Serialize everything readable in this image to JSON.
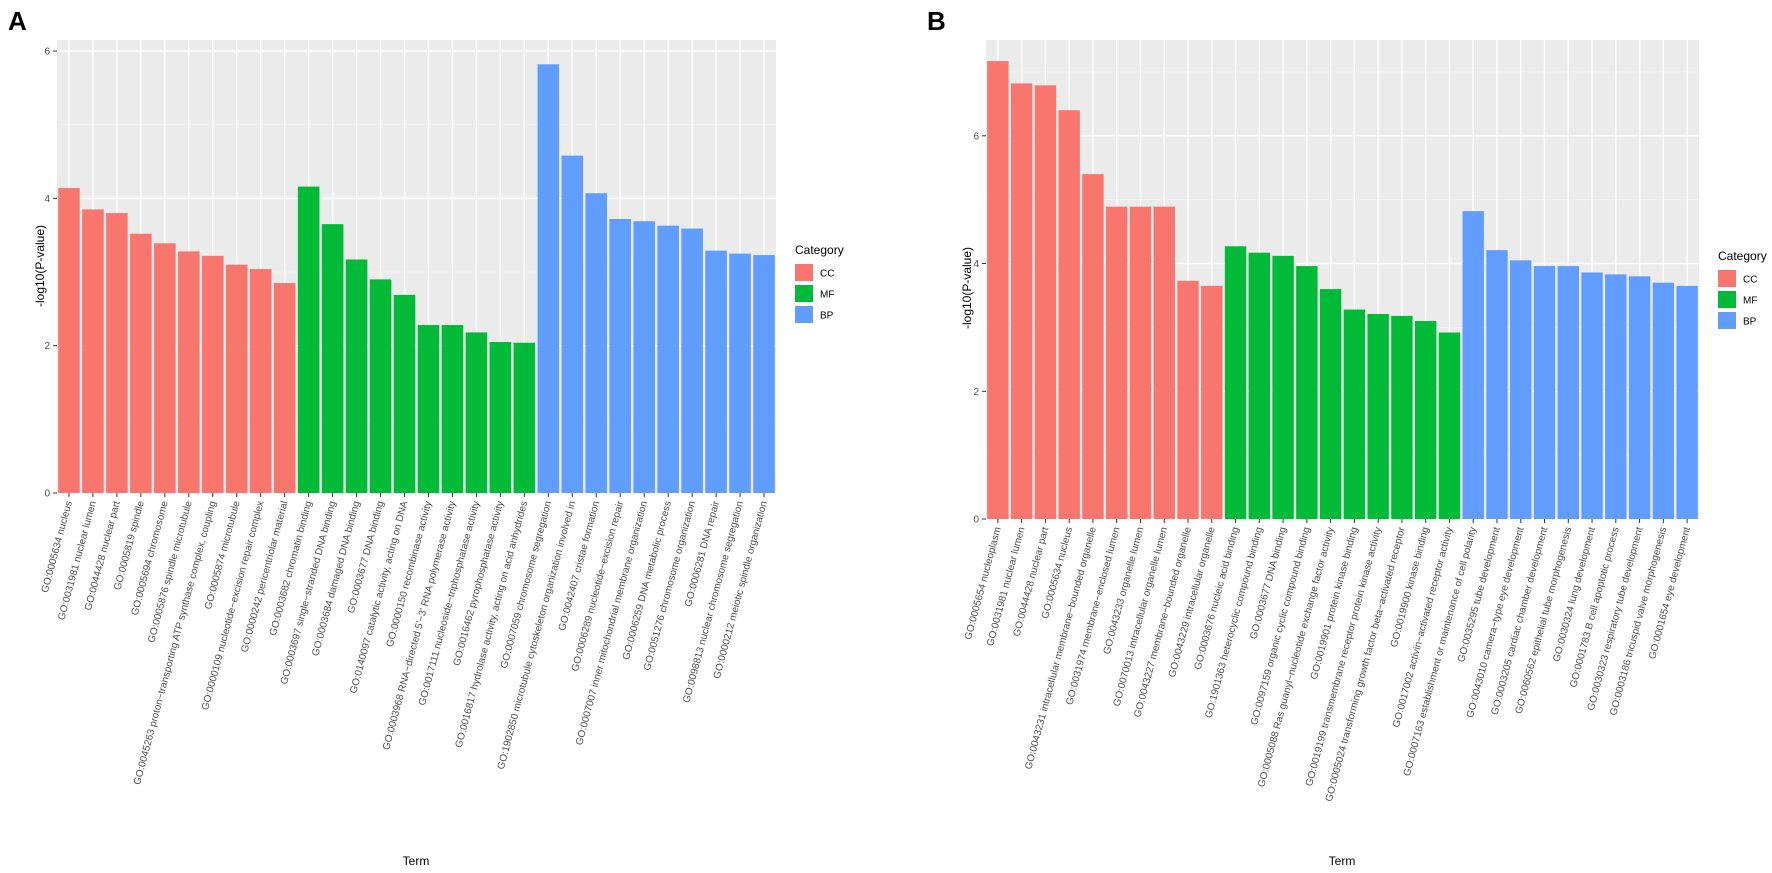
{
  "chart_data": [
    {
      "type": "bar",
      "panel_label": "A",
      "xlabel": "Term",
      "ylabel": "-log10(P-value)",
      "ylim": [
        0,
        6.15
      ],
      "y_ticks": [
        0,
        2,
        4,
        6
      ],
      "y_tick_labels": [
        "0",
        "2",
        "4",
        "6"
      ],
      "grid": true,
      "legend": {
        "title": "Category",
        "position": "right",
        "entries": [
          {
            "key": "CC",
            "label": "CC",
            "color": "#F8766D"
          },
          {
            "key": "MF",
            "label": "MF",
            "color": "#00BA38"
          },
          {
            "key": "BP",
            "label": "BP",
            "color": "#619CFF"
          }
        ]
      },
      "categories": [
        "GO:0005634 nucleus",
        "GO:0031981 nuclear lumen",
        "GO:0044428 nuclear part",
        "GO:0005819 spindle",
        "GO:0005694 chromosome",
        "GO:0005876 spindle microtubule",
        "GO:0045263 proton−transporting ATP synthase complex, coupling",
        "GO:0005874 microtubule",
        "GO:0000109 nucleotide−excision repair complex",
        "GO:0000242 pericentriolar material",
        "GO:0003682 chromatin binding",
        "GO:0003697 single−stranded DNA binding",
        "GO:0003684 damaged DNA binding",
        "GO:0003677 DNA binding",
        "GO:0140097 catalytic activity, acting on DNA",
        "GO:0000150 recombinase activity",
        "GO:0003968 RNA−directed 5'−3' RNA polymerase activity",
        "GO:0017111 nucleoside−triphosphatase activity",
        "GO:0016462 pyrophosphatase activity",
        "GO:0016817 hydrolase activity, acting on acid anhydrides",
        "GO:0007059 chromosome segregation",
        "GO:1902850 microtubule cytoskeleton organization involved in",
        "GO:0042407 cristae formation",
        "GO:0006289 nucleotide−excision repair",
        "GO:0007007 inner mitochondrial membrane organization",
        "GO:0006259 DNA metabolic process",
        "GO:0051276 chromosome organization",
        "GO:0006281 DNA repair",
        "GO:0098813 nuclear chromosome segregation",
        "GO:0000212 meiotic spindle organization"
      ],
      "values": [
        4.14,
        3.85,
        3.8,
        3.52,
        3.39,
        3.28,
        3.22,
        3.1,
        3.04,
        2.85,
        4.16,
        3.65,
        3.17,
        2.9,
        2.69,
        2.28,
        2.28,
        2.18,
        2.05,
        2.04,
        5.82,
        4.58,
        4.07,
        3.72,
        3.69,
        3.63,
        3.59,
        3.29,
        3.25,
        3.23
      ],
      "groups": [
        "CC",
        "CC",
        "CC",
        "CC",
        "CC",
        "CC",
        "CC",
        "CC",
        "CC",
        "CC",
        "MF",
        "MF",
        "MF",
        "MF",
        "MF",
        "MF",
        "MF",
        "MF",
        "MF",
        "MF",
        "BP",
        "BP",
        "BP",
        "BP",
        "BP",
        "BP",
        "BP",
        "BP",
        "BP",
        "BP"
      ]
    },
    {
      "type": "bar",
      "panel_label": "B",
      "xlabel": "Term",
      "ylabel": "-log10(P-value)",
      "ylim": [
        0,
        7.5
      ],
      "y_ticks": [
        0,
        2,
        4,
        6
      ],
      "y_tick_labels": [
        "0",
        "2",
        "4",
        "6"
      ],
      "grid": true,
      "legend": {
        "title": "Category",
        "position": "right",
        "entries": [
          {
            "key": "CC",
            "label": "CC",
            "color": "#F8766D"
          },
          {
            "key": "MF",
            "label": "MF",
            "color": "#00BA38"
          },
          {
            "key": "BP",
            "label": "BP",
            "color": "#619CFF"
          }
        ]
      },
      "categories": [
        "GO:0005654 nucleoplasm",
        "GO:0031981 nuclear lumen",
        "GO:0044428 nuclear part",
        "GO:0005634 nucleus",
        "GO:0043231 intracellular membrane−bounded organelle",
        "GO:0031974 membrane−enclosed lumen",
        "GO:0043233 organelle lumen",
        "GO:0070013 intracellular organelle lumen",
        "GO:0043227 membrane−bounded organelle",
        "GO:0043229 intracellular organelle",
        "GO:0003676 nucleic acid binding",
        "GO:1901363 heterocyclic compound binding",
        "GO:0003677 DNA binding",
        "GO:0097159 organic cyclic compound binding",
        "GO:0005088 Ras guanyl−nucleotide exchange factor activity",
        "GO:0019901 protein kinase binding",
        "GO:0019199 transmembrane receptor protein kinase activity",
        "GO:0005024 transforming growth factor beta−activated receptor",
        "GO:0019900 kinase binding",
        "GO:0017002 activin−activated receptor activity",
        "GO:0007163 establishment or maintenance of cell polarity",
        "GO:0035295 tube development",
        "GO:0043010 camera−type eye development",
        "GO:0003205 cardiac chamber development",
        "GO:0060562 epithelial tube morphogenesis",
        "GO:0030324 lung development",
        "GO:0001783 B cell apoptotic process",
        "GO:0030323 respiratory tube development",
        "GO:0003186 tricuspid valve morphogenesis",
        "GO:0001654 eye development"
      ],
      "values": [
        7.17,
        6.82,
        6.79,
        6.4,
        5.4,
        4.89,
        4.89,
        4.89,
        3.73,
        3.65,
        4.27,
        4.17,
        4.12,
        3.96,
        3.6,
        3.28,
        3.21,
        3.18,
        3.1,
        2.92,
        4.82,
        4.21,
        4.05,
        3.96,
        3.96,
        3.86,
        3.83,
        3.8,
        3.7,
        3.65
      ],
      "groups": [
        "CC",
        "CC",
        "CC",
        "CC",
        "CC",
        "CC",
        "CC",
        "CC",
        "CC",
        "CC",
        "MF",
        "MF",
        "MF",
        "MF",
        "MF",
        "MF",
        "MF",
        "MF",
        "MF",
        "MF",
        "BP",
        "BP",
        "BP",
        "BP",
        "BP",
        "BP",
        "BP",
        "BP",
        "BP",
        "BP"
      ]
    }
  ]
}
